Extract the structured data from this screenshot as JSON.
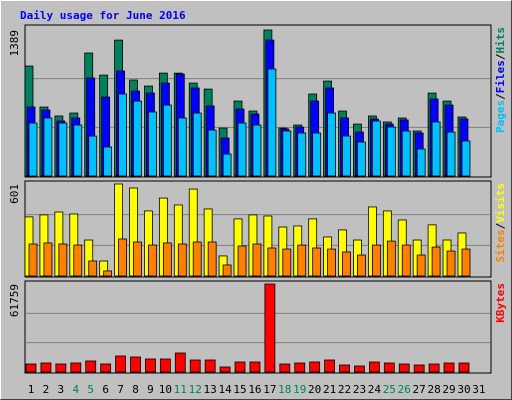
{
  "title": "Daily usage for June 2016",
  "highlight": {
    "color": "#00805c",
    "categories": [
      4,
      5,
      11,
      12,
      18,
      19,
      25,
      26
    ]
  },
  "chart_data": [
    {
      "type": "bar",
      "ylim": [
        0,
        1389
      ],
      "yticks": [
        1389
      ],
      "grid_lines": [
        463,
        926
      ],
      "separator": "/",
      "series": [
        {
          "name": "Hits",
          "color": "#00805c",
          "values": [
            1046,
            656,
            571,
            599,
            1170,
            960,
            1293,
            913,
            856,
            979,
            979,
            884,
            827,
            456,
            713,
            618,
            1389,
            456,
            485,
            780,
            903,
            618,
            494,
            571,
            514,
            552,
            428,
            789,
            713,
            561,
            null
          ]
        },
        {
          "name": "Files",
          "color": "#0000ff",
          "values": [
            656,
            628,
            523,
            552,
            932,
            751,
            999,
            808,
            789,
            884,
            970,
            837,
            666,
            361,
            637,
            590,
            1293,
            447,
            466,
            713,
            837,
            552,
            418,
            542,
            494,
            533,
            409,
            732,
            675,
            542,
            null
          ]
        },
        {
          "name": "Pages",
          "color": "#00c0ff",
          "values": [
            504,
            552,
            504,
            485,
            380,
            276,
            780,
            713,
            609,
            675,
            552,
            599,
            437,
            209,
            504,
            485,
            1018,
            428,
            409,
            409,
            599,
            380,
            323,
            523,
            466,
            428,
            257,
            514,
            418,
            333,
            null
          ]
        }
      ]
    },
    {
      "type": "bar",
      "ylim": [
        0,
        601
      ],
      "yticks": [
        601
      ],
      "grid_lines": [
        200,
        401
      ],
      "separator": "/",
      "series": [
        {
          "name": "Visits",
          "color": "#ffff00",
          "values": [
            386,
            399,
            418,
            405,
            235,
            98,
            601,
            575,
            425,
            509,
            464,
            568,
            438,
            131,
            373,
            399,
            392,
            320,
            327,
            373,
            255,
            301,
            235,
            451,
            425,
            366,
            235,
            334,
            235,
            281,
            null
          ]
        },
        {
          "name": "Sites",
          "color": "#ff8000",
          "values": [
            209,
            216,
            209,
            202,
            98,
            33,
            242,
            222,
            202,
            216,
            209,
            222,
            222,
            72,
            196,
            209,
            183,
            176,
            202,
            183,
            176,
            157,
            137,
            202,
            228,
            202,
            137,
            189,
            163,
            176,
            null
          ]
        }
      ]
    },
    {
      "type": "bar",
      "ylim": [
        0,
        61759
      ],
      "yticks": [
        61759
      ],
      "grid_lines": [
        20586,
        41173
      ],
      "categories": [
        1,
        2,
        3,
        4,
        5,
        6,
        7,
        8,
        9,
        10,
        11,
        12,
        13,
        14,
        15,
        16,
        17,
        18,
        19,
        20,
        21,
        22,
        23,
        24,
        25,
        26,
        27,
        28,
        29,
        30,
        31
      ],
      "series": [
        {
          "name": "KBytes",
          "color": "#ff0000",
          "values": [
            5616,
            6318,
            5616,
            6318,
            7722,
            5616,
            11232,
            10530,
            9126,
            9126,
            13338,
            8424,
            8424,
            3510,
            7020,
            7020,
            61759,
            5616,
            6318,
            7020,
            8424,
            4914,
            4212,
            7020,
            6318,
            5616,
            4914,
            5616,
            6318,
            6318,
            null
          ]
        }
      ]
    }
  ]
}
